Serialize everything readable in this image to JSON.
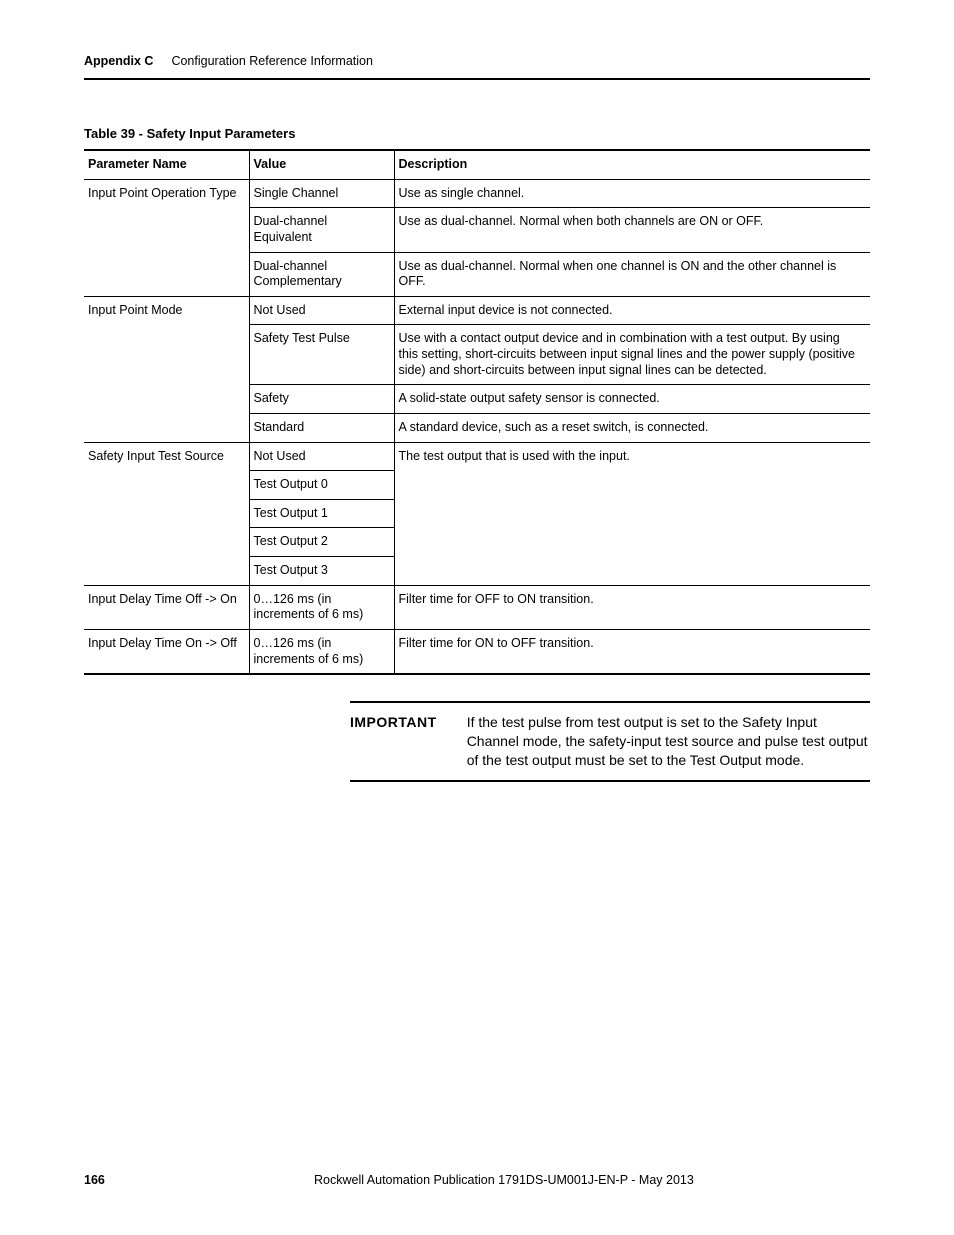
{
  "header": {
    "appendix": "Appendix C",
    "section": "Configuration Reference Information"
  },
  "tableTitle": "Table 39 - Safety Input Parameters",
  "columns": [
    "Parameter Name",
    "Value",
    "Description"
  ],
  "rows": [
    {
      "name": "Input Point Operation Type",
      "nameRowspan": 3,
      "value": "Single Channel",
      "desc": "Use as single channel."
    },
    {
      "value": "Dual-channel Equivalent",
      "desc": "Use as dual-channel. Normal when both channels are ON or OFF."
    },
    {
      "value": "Dual-channel Complementary",
      "desc": "Use as dual-channel. Normal when one channel is ON and the other channel is OFF."
    },
    {
      "name": "Input Point Mode",
      "nameRowspan": 4,
      "value": "Not Used",
      "desc": "External input device is not connected."
    },
    {
      "value": "Safety Test Pulse",
      "desc": "Use with a contact output device and in combination with a test output. By using this setting, short-circuits between input signal lines and the power supply (positive side) and short-circuits between input signal lines can be detected."
    },
    {
      "value": "Safety",
      "desc": "A solid-state output safety sensor is connected."
    },
    {
      "value": "Standard",
      "desc": "A standard device, such as a reset switch, is connected."
    },
    {
      "name": "Safety Input Test Source",
      "nameRowspan": 5,
      "value": "Not Used",
      "desc": "The test output that is used with the input.",
      "descRowspan": 5
    },
    {
      "value": "Test Output 0"
    },
    {
      "value": "Test Output 1"
    },
    {
      "value": "Test Output 2"
    },
    {
      "value": "Test Output 3"
    },
    {
      "name": "Input Delay Time Off -> On",
      "value": "0…126 ms (in increments of 6 ms)",
      "desc": "Filter time for OFF to ON transition."
    },
    {
      "name": "Input Delay Time On -> Off",
      "value": "0…126 ms (in increments of 6 ms)",
      "desc": "Filter time for ON to OFF transition."
    }
  ],
  "important": {
    "label": "IMPORTANT",
    "text": "If the test pulse from test output is set to the Safety Input Channel mode, the safety-input test source and pulse test output of the test output must be set to the Test Output mode."
  },
  "footer": {
    "pageNumber": "166",
    "publication": "Rockwell Automation Publication 1791DS-UM001J-EN-P - May 2013"
  }
}
